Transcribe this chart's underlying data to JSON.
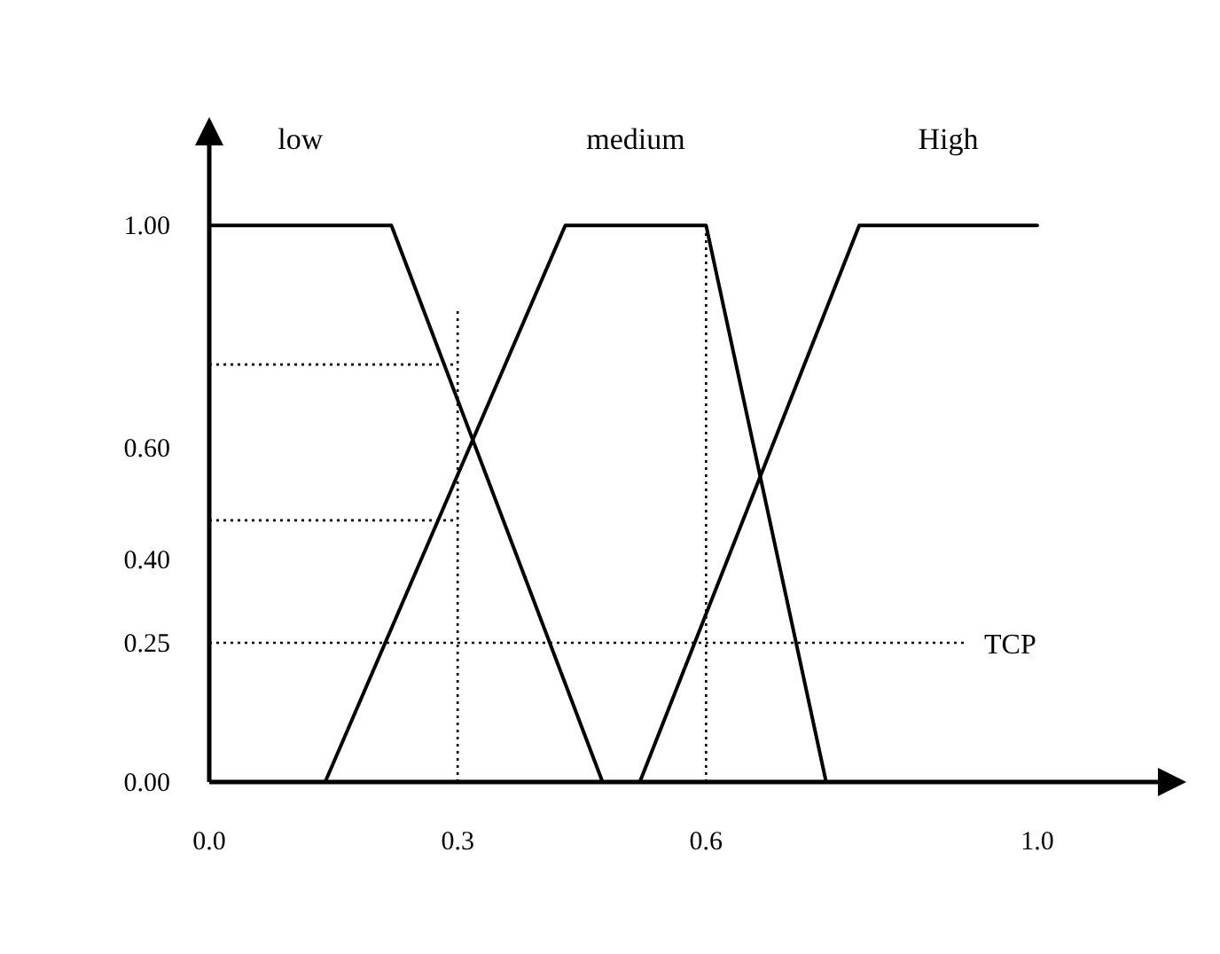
{
  "chart_data": {
    "type": "line",
    "legend": "top",
    "marker": "none",
    "line_style": "solid",
    "grid": false,
    "xlim": [
      0,
      1.15
    ],
    "ylim": [
      0,
      1.15
    ],
    "xticks": [
      {
        "value": 0,
        "label": "0.0"
      },
      {
        "value": 0.3,
        "label": "0.3"
      },
      {
        "value": 0.6,
        "label": "0.6"
      },
      {
        "value": 1,
        "label": "1.0"
      }
    ],
    "yticks": [
      {
        "value": 0,
        "label": "0.00"
      },
      {
        "value": 0.25,
        "label": "0.25"
      },
      {
        "value": 0.4,
        "label": "0.40"
      },
      {
        "value": 0.6,
        "label": "0.60"
      },
      {
        "value": 1,
        "label": "1.00"
      }
    ],
    "series": [
      {
        "name": "low",
        "color": "#000000",
        "x": [
          0,
          0.22,
          0.475
        ],
        "values": [
          1,
          1,
          0
        ]
      },
      {
        "name": "medium",
        "color": "#000000",
        "x": [
          0.14,
          0.43,
          0.6,
          0.745
        ],
        "values": [
          0,
          1,
          1,
          0
        ]
      },
      {
        "name": "High",
        "color": "#000000",
        "x": [
          0.52,
          0.785,
          1.0
        ],
        "values": [
          0,
          1,
          1
        ]
      }
    ],
    "ref_lines": [
      {
        "axis": "x",
        "value": 0.3,
        "line_style": "dotted",
        "color": "#000000"
      },
      {
        "axis": "x",
        "value": 0.6,
        "line_style": "dotted",
        "color": "#000000"
      },
      {
        "axis": "y",
        "value": 0.75,
        "line_style": "dotted",
        "color": "#000000"
      },
      {
        "axis": "y",
        "value": 0.47,
        "line_style": "dotted",
        "color": "#000000"
      },
      {
        "axis": "y",
        "value": 0.25,
        "label": "TCP",
        "line_style": "dotted",
        "color": "#000000"
      }
    ]
  }
}
